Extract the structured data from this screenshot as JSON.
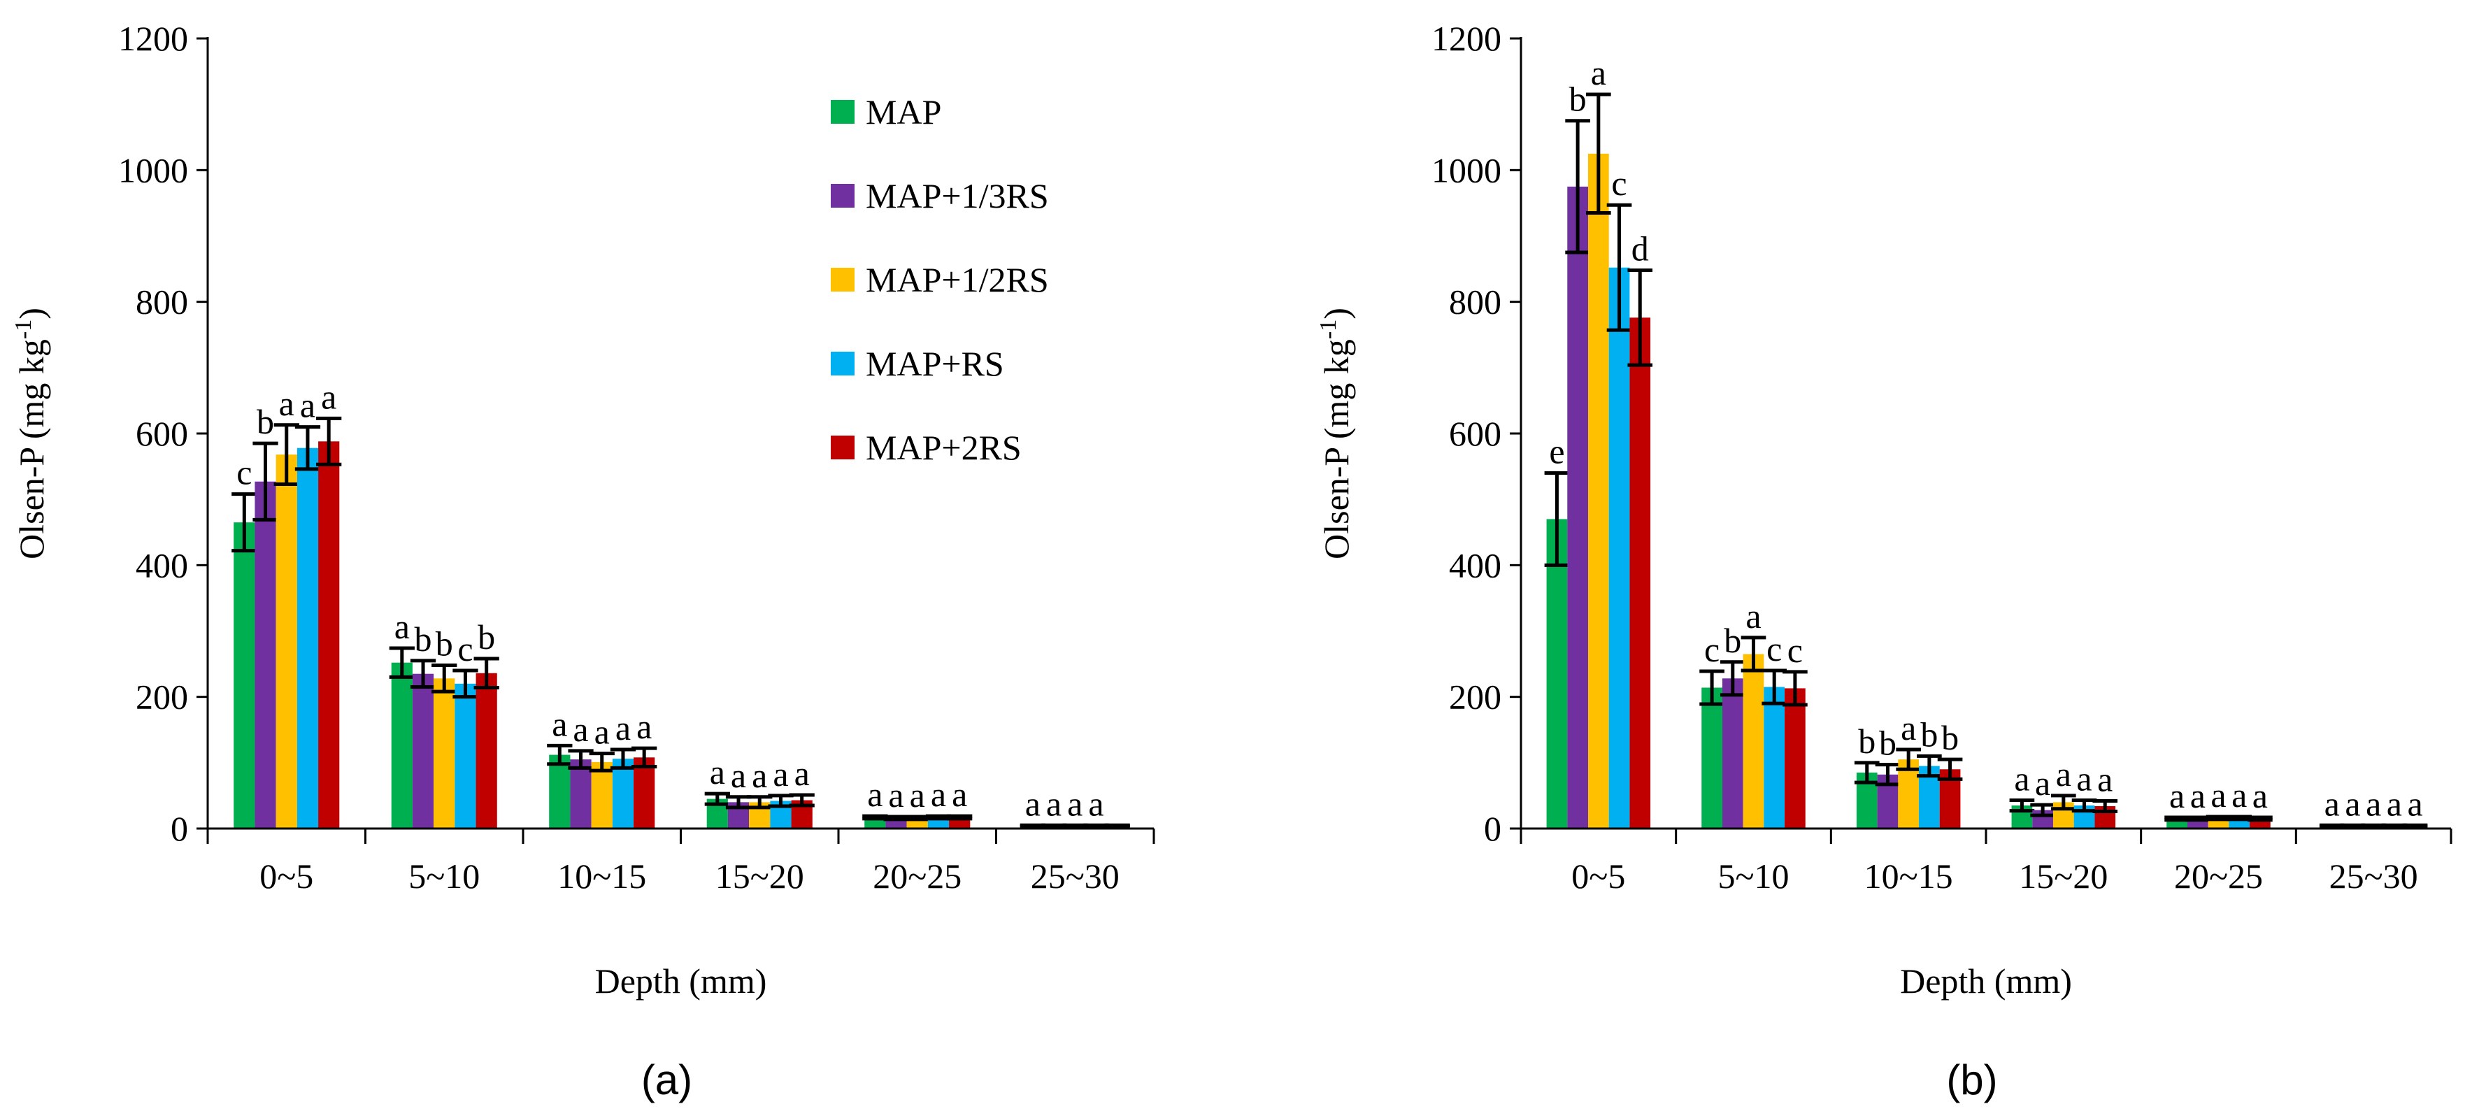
{
  "chart_data": [
    {
      "type": "bar",
      "panel_label": "(a)",
      "xlabel": "Depth (mm)",
      "ylabel": "Olsen-P (mg kg",
      "ylabel_sup": "-1",
      "ylabel_close": ")",
      "ylim": [
        0,
        1200
      ],
      "yticks": [
        "0",
        "200",
        "400",
        "600",
        "800",
        "1000",
        "1200"
      ],
      "categories": [
        "0~5",
        "5~10",
        "10~15",
        "15~20",
        "20~25",
        "25~30"
      ],
      "legend": {
        "placement": "top-right"
      },
      "series": [
        {
          "name": "MAP",
          "color": "#00B050",
          "values": [
            465,
            252,
            112,
            45,
            17,
            4
          ],
          "errors": [
            43,
            22,
            14,
            8,
            2,
            1
          ],
          "letters": [
            "c",
            "a",
            "a",
            "a",
            "a",
            "a"
          ]
        },
        {
          "name": "MAP+1/3RS",
          "color": "#7030A0",
          "values": [
            527,
            235,
            105,
            40,
            16,
            4
          ],
          "errors": [
            58,
            20,
            13,
            8,
            2,
            1
          ],
          "letters": [
            "b",
            "b",
            "a",
            "a",
            "a",
            "a"
          ]
        },
        {
          "name": "MAP+1/2RS",
          "color": "#FFC000",
          "values": [
            568,
            228,
            101,
            40,
            16,
            4
          ],
          "errors": [
            45,
            20,
            13,
            8,
            2,
            1
          ],
          "letters": [
            "a",
            "b",
            "a",
            "a",
            "a",
            "a"
          ]
        },
        {
          "name": "MAP+RS",
          "color": "#00B0F0",
          "values": [
            578,
            220,
            106,
            42,
            17,
            4
          ],
          "errors": [
            32,
            20,
            14,
            8,
            2,
            1
          ],
          "letters": [
            "a",
            "c",
            "a",
            "a",
            "a",
            "a"
          ]
        },
        {
          "name": "MAP+2RS",
          "color": "#C00000",
          "values": [
            588,
            236,
            108,
            43,
            17,
            4
          ],
          "errors": [
            35,
            22,
            14,
            8,
            2,
            1
          ],
          "letters": [
            "a",
            "b",
            "a",
            "a",
            "a",
            ""
          ]
        }
      ]
    },
    {
      "type": "bar",
      "panel_label": "(b)",
      "xlabel": "Depth (mm)",
      "ylabel": "Olsen-P (mg kg",
      "ylabel_sup": "-1",
      "ylabel_close": ")",
      "ylim": [
        0,
        1200
      ],
      "yticks": [
        "0",
        "200",
        "400",
        "600",
        "800",
        "1000",
        "1200"
      ],
      "categories": [
        "0~5",
        "5~10",
        "10~15",
        "15~20",
        "20~25",
        "25~30"
      ],
      "series": [
        {
          "name": "MAP",
          "color": "#00B050",
          "values": [
            470,
            214,
            85,
            35,
            15,
            4
          ],
          "errors": [
            70,
            25,
            15,
            8,
            2,
            1
          ],
          "letters": [
            "e",
            "c",
            "b",
            "a",
            "a",
            "a"
          ]
        },
        {
          "name": "MAP+1/3RS",
          "color": "#7030A0",
          "values": [
            975,
            228,
            82,
            28,
            15,
            4
          ],
          "errors": [
            100,
            25,
            15,
            8,
            2,
            1
          ],
          "letters": [
            "b",
            "b",
            "b",
            "a",
            "a",
            "a"
          ]
        },
        {
          "name": "MAP+1/2RS",
          "color": "#FFC000",
          "values": [
            1025,
            265,
            105,
            40,
            16,
            4
          ],
          "errors": [
            90,
            25,
            15,
            10,
            2,
            1
          ],
          "letters": [
            "a",
            "a",
            "a",
            "a",
            "a",
            "a"
          ]
        },
        {
          "name": "MAP+RS",
          "color": "#00B0F0",
          "values": [
            852,
            215,
            95,
            35,
            16,
            4
          ],
          "errors": [
            95,
            25,
            15,
            8,
            2,
            1
          ],
          "letters": [
            "c",
            "c",
            "b",
            "a",
            "a",
            "a"
          ]
        },
        {
          "name": "MAP+2RS",
          "color": "#C00000",
          "values": [
            776,
            213,
            90,
            34,
            15,
            4
          ],
          "errors": [
            72,
            25,
            15,
            8,
            2,
            1
          ],
          "letters": [
            "d",
            "c",
            "b",
            "a",
            "a",
            "a"
          ]
        }
      ]
    }
  ]
}
